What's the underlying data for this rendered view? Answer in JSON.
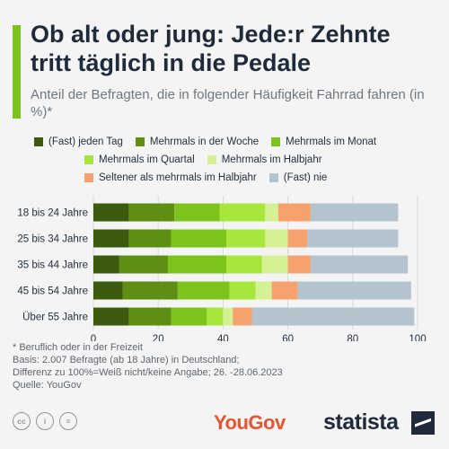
{
  "header": {
    "title": "Ob alt oder jung: Jede:r Zehnte tritt täglich in die Pedale",
    "subtitle": "Anteil der Befragten, die in folgender Häufigkeit Fahrrad fahren (in %)*",
    "accent_color": "#7cc31c"
  },
  "chart_data": {
    "type": "bar",
    "orientation": "horizontal",
    "stacked": true,
    "categories": [
      "18 bis 24 Jahre",
      "25 bis 34 Jahre",
      "35 bis 44 Jahre",
      "45 bis 54 Jahre",
      "Über 55 Jahre"
    ],
    "series": [
      {
        "name": "(Fast) jeden Tag",
        "color": "#3b5a0e",
        "values": [
          11,
          11,
          8,
          9,
          11
        ]
      },
      {
        "name": "Mehrmals in der Woche",
        "color": "#5e8f12",
        "values": [
          14,
          13,
          15,
          17,
          13
        ]
      },
      {
        "name": "Mehrmals im Monat",
        "color": "#7cc31c",
        "values": [
          14,
          17,
          18,
          16,
          11
        ]
      },
      {
        "name": "Mehrmals im Quartal",
        "color": "#a7e63b",
        "values": [
          14,
          12,
          11,
          8,
          5
        ]
      },
      {
        "name": "Mehrmals im Halbjahr",
        "color": "#d4f294",
        "values": [
          4,
          7,
          8,
          5,
          3
        ]
      },
      {
        "name": "Seltener als mehrmals im Halbjahr",
        "color": "#f6a26e",
        "values": [
          10,
          6,
          7,
          8,
          6
        ]
      },
      {
        "name": "(Fast) nie",
        "color": "#b4c4cf",
        "values": [
          27,
          28,
          30,
          35,
          50
        ]
      }
    ],
    "xlim": [
      0,
      100
    ],
    "xticks": [
      "0",
      "20",
      "40",
      "60",
      "80",
      "100"
    ],
    "grid": true,
    "legend_position": "top"
  },
  "footnotes": [
    "* Beruflich oder in der Freizeit",
    "Basis: 2.007 Befragte (ab 18 Jahre) in Deutschland;",
    "Differenz zu 100%=Weiß nicht/keine Angabe; 26. -28.06.2023",
    "Quelle: YouGov"
  ],
  "branding": {
    "cc_icons": [
      "cc-icon",
      "info-icon",
      "equals-icon"
    ],
    "source_logo": "YouGov",
    "publisher_logo": "statista"
  }
}
